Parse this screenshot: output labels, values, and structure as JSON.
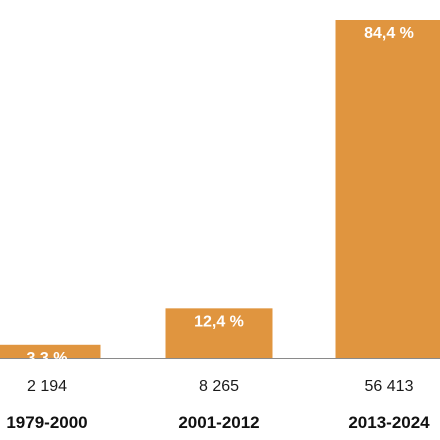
{
  "chart_data": {
    "type": "bar",
    "categories": [
      "1979-2000",
      "2001-2012",
      "2013-2024"
    ],
    "values": [
      3.3,
      12.4,
      84.4
    ],
    "value_labels": [
      "3,3 %",
      "12,4 %",
      "84,4 %"
    ],
    "counts": [
      "2 194",
      "8 265",
      "56 413"
    ],
    "ylim": [
      0,
      84.4
    ],
    "bar_color": "#e0953f",
    "baseline_color": "#8a8a8a",
    "grid": false,
    "legend": "none"
  }
}
